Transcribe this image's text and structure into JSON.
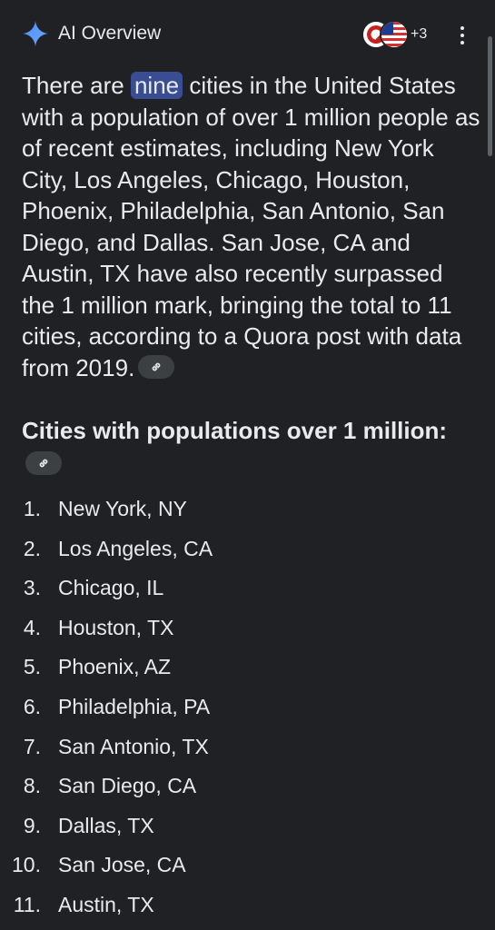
{
  "header": {
    "title": "AI Overview",
    "more_sources": "+3",
    "icons": [
      "sparkle-icon",
      "source-favicon",
      "us-flag-icon",
      "more-vert-icon"
    ]
  },
  "summary": {
    "before": "There are ",
    "highlight": "nine",
    "after": " cities in the United States with a population of over 1 million people as of recent estimates, including New York City, Los Angeles, Chicago, Houston, Phoenix, Philadelphia, San Antonio, San Diego, and Dallas. San Jose, CA and Austin, TX have also recently surpassed the 1 million mark, bringing the total to 11 cities, according to a Quora post with data from 2019."
  },
  "section": {
    "heading": "Cities with populations over 1 million:"
  },
  "cities": [
    {
      "num": "1.",
      "name": "New York, NY"
    },
    {
      "num": "2.",
      "name": "Los Angeles, CA"
    },
    {
      "num": "3.",
      "name": "Chicago, IL"
    },
    {
      "num": "4.",
      "name": "Houston, TX"
    },
    {
      "num": "5.",
      "name": "Phoenix, AZ"
    },
    {
      "num": "6.",
      "name": "Philadelphia, PA"
    },
    {
      "num": "7.",
      "name": "San Antonio, TX"
    },
    {
      "num": "8.",
      "name": "San Diego, CA"
    },
    {
      "num": "9.",
      "name": "Dallas, TX"
    },
    {
      "num": "10.",
      "name": "San Jose, CA"
    },
    {
      "num": "11.",
      "name": "Austin, TX"
    }
  ],
  "colors": {
    "background": "#202124",
    "text": "#e8eaed",
    "highlight": "#394e92",
    "chip": "#3c4043"
  }
}
